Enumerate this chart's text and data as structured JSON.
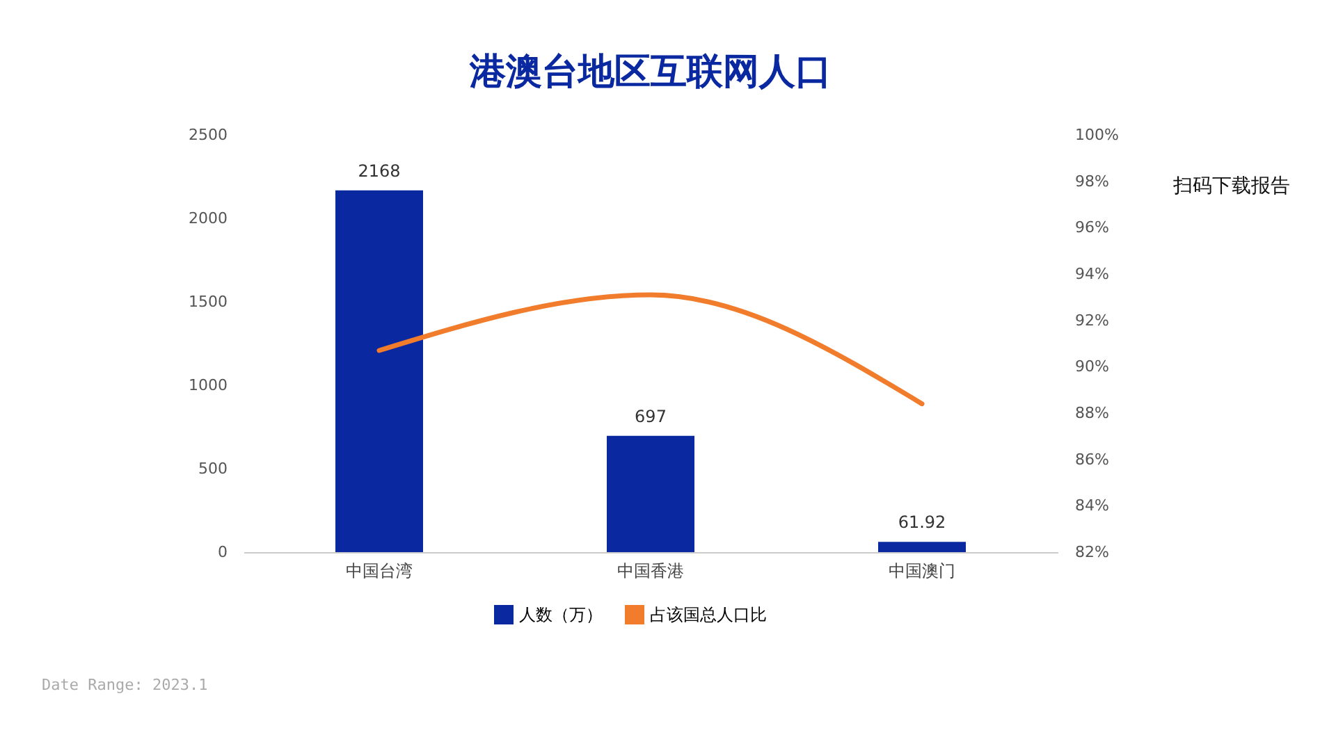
{
  "chart_data": {
    "type": "bar",
    "title": "港澳台地区互联网人口",
    "categories": [
      "中国台湾",
      "中国香港",
      "中国澳门"
    ],
    "series": [
      {
        "name": "人数（万）",
        "color": "#0a28a0",
        "values": [
          2168,
          697,
          61.92
        ],
        "value_labels": [
          "2168",
          "697",
          "61.92"
        ]
      },
      {
        "name": "占该国总人口比",
        "type": "line",
        "axis": "y2",
        "color": "#f07c2c",
        "values": [
          90.7,
          93.1,
          88.4
        ]
      }
    ],
    "ylim": [
      0,
      2500
    ],
    "yticks": [
      0,
      500,
      1000,
      1500,
      2000,
      2500
    ],
    "y2lim": [
      82,
      100
    ],
    "y2ticks": [
      {
        "value": 82,
        "label": "82%"
      },
      {
        "value": 84,
        "label": "84%"
      },
      {
        "value": 86,
        "label": "86%"
      },
      {
        "value": 88,
        "label": "88%"
      },
      {
        "value": 90,
        "label": "90%"
      },
      {
        "value": 92,
        "label": "92%"
      },
      {
        "value": 94,
        "label": "94%"
      },
      {
        "value": 96,
        "label": "96%"
      },
      {
        "value": 98,
        "label": "98%"
      },
      {
        "value": 100,
        "label": "100%"
      }
    ],
    "grid": false,
    "legend": "bottom",
    "annotations": [
      "扫码下载报告",
      "Date Range: 2023.1"
    ]
  }
}
